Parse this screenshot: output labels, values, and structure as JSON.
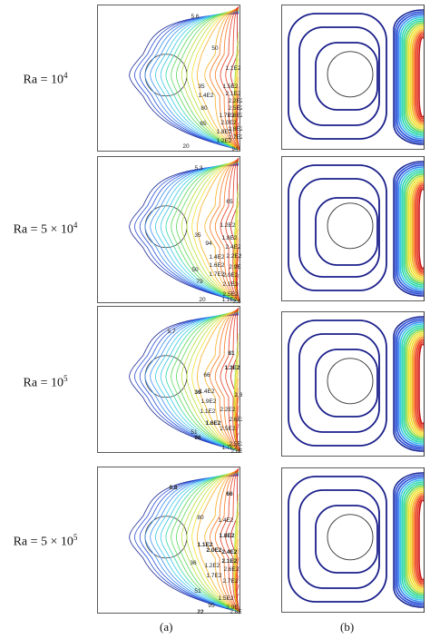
{
  "rows": [
    {
      "ra": {
        "prefix": "Ra = ",
        "coef": "",
        "base": "10",
        "exp": "4"
      },
      "labels": [
        "5.6",
        "50",
        "1.1E2",
        "35",
        "1.5E2",
        "80",
        "1.4E2",
        "2.1E2",
        "2.2E2",
        "1.7E2",
        "2.5E2",
        "65",
        "2.0E2",
        "2.6E2",
        "1.8E2",
        "2.8E2",
        "1.2E2",
        "2.7E2",
        "20",
        "94"
      ]
    },
    {
      "ra": {
        "prefix": "Ra = ",
        "coef": "5 × ",
        "base": "10",
        "exp": "4"
      },
      "labels": [
        "5.3",
        "65",
        "35",
        "1.2E2",
        "94",
        "1.8E2",
        "2.4E2",
        "1.4E2",
        "2.2E2",
        "1.6E2",
        "2.9E",
        "1.7E2",
        "2.0E2",
        "50",
        "2.1E2",
        "79",
        "2.5E2",
        "1.1E2",
        "20",
        "2.6"
      ]
    },
    {
      "ra": {
        "prefix": "Ra = ",
        "coef": "",
        "base": "10",
        "exp": "5"
      },
      "labels": [
        "5.7",
        "81",
        "1.3E2",
        "66",
        "2.8E",
        "1.4E2",
        "36",
        "1.9E2",
        "2.6E2",
        "1.1E2",
        "1.6E2",
        "2.2E2",
        "51",
        "2.5E2",
        "96",
        "2.5E2",
        "1.7E2",
        "2.8E"
      ]
    },
    {
      "ra": {
        "prefix": "Ra = ",
        "coef": "5 × ",
        "base": "10",
        "exp": "5"
      },
      "labels": [
        "6.8",
        "66",
        "80",
        "1.4E2",
        "1.8E2",
        "1.1E2",
        "2.0E2",
        "2.4E2",
        "36",
        "2.1E2",
        "2.6E2",
        "1.2E2",
        "2.7E2",
        "1.7E2",
        "51",
        "1.5E2",
        "2.9E",
        "95",
        "22",
        "2.8E"
      ]
    }
  ],
  "captions": {
    "a": "(a)",
    "b": "(b)"
  },
  "palette": [
    "#1e2a96",
    "#2a4fd6",
    "#3a8ef0",
    "#38c6e8",
    "#30d8a8",
    "#5ad85a",
    "#b4e03a",
    "#f0e030",
    "#f8b028",
    "#f87820",
    "#e83a20",
    "#c81818"
  ]
}
